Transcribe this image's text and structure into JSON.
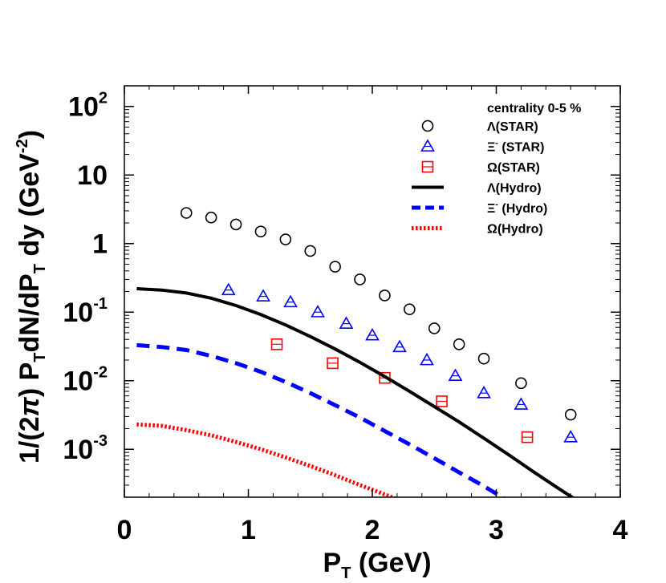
{
  "chart_data": {
    "type": "scatter",
    "title": "",
    "xlabel": "P",
    "xlabel_sub": "T",
    "xlabel_unit": " (GeV)",
    "ylabel_parts": {
      "p1": "1/(2",
      "pi": "π",
      "p2": ") P",
      "sub1": "T",
      "p3": "dN/dP",
      "sub2": "T",
      "p4": " dy (GeV",
      "sup": "-2",
      "p5": ")"
    },
    "xlim": [
      0,
      4
    ],
    "ylim": [
      0.0002,
      200
    ],
    "yscale": "log",
    "x_ticks": [
      {
        "value": 0,
        "label": "0"
      },
      {
        "value": 1,
        "label": "1"
      },
      {
        "value": 2,
        "label": "2"
      },
      {
        "value": 3,
        "label": "3"
      },
      {
        "value": 4,
        "label": "4"
      }
    ],
    "y_ticks": [
      {
        "value": 0.001,
        "base": "10",
        "exp": "-3"
      },
      {
        "value": 0.01,
        "base": "10",
        "exp": "-2"
      },
      {
        "value": 0.1,
        "base": "10",
        "exp": "-1"
      },
      {
        "value": 1,
        "base": "1",
        "exp": ""
      },
      {
        "value": 10,
        "base": "10",
        "exp": ""
      },
      {
        "value": 100,
        "base": "10",
        "exp": "2"
      }
    ],
    "legend_title": "centrality 0-5 %",
    "legend_position": "top-right",
    "series": [
      {
        "name": "Λ(STAR)",
        "kind": "points",
        "marker": "circle",
        "color": "#000000",
        "x": [
          0.5,
          0.7,
          0.9,
          1.1,
          1.3,
          1.5,
          1.7,
          1.9,
          2.1,
          2.3,
          2.5,
          2.7,
          2.9,
          3.2,
          3.6
        ],
        "y": [
          2.8,
          2.4,
          1.9,
          1.5,
          1.15,
          0.78,
          0.46,
          0.3,
          0.175,
          0.11,
          0.058,
          0.034,
          0.021,
          0.0092,
          0.0032
        ]
      },
      {
        "name": "Ξ",
        "name_sup": "-",
        "name_rest": " (STAR)",
        "kind": "points",
        "marker": "triangle",
        "color": "#0000ff",
        "x": [
          0.84,
          1.12,
          1.34,
          1.56,
          1.79,
          2.0,
          2.22,
          2.44,
          2.67,
          2.9,
          3.2,
          3.6
        ],
        "y": [
          0.21,
          0.17,
          0.14,
          0.1,
          0.068,
          0.046,
          0.031,
          0.02,
          0.0118,
          0.0066,
          0.0045,
          0.0015
        ]
      },
      {
        "name": "Ω(STAR)",
        "kind": "points",
        "marker": "square",
        "color": "#ff0000",
        "x": [
          1.23,
          1.68,
          2.1,
          2.56,
          3.25
        ],
        "y": [
          0.034,
          0.018,
          0.011,
          0.005,
          0.0015
        ]
      },
      {
        "name": "Λ(Hydro)",
        "kind": "line",
        "style": "solid",
        "color": "#000000",
        "x": [
          0.1,
          0.3,
          0.5,
          0.7,
          0.9,
          1.1,
          1.3,
          1.5,
          1.7,
          1.9,
          2.1,
          2.3,
          2.5,
          2.7,
          2.9,
          3.1,
          3.3,
          3.5,
          3.65
        ],
        "y": [
          0.22,
          0.21,
          0.19,
          0.16,
          0.125,
          0.092,
          0.065,
          0.044,
          0.029,
          0.0185,
          0.0115,
          0.007,
          0.0042,
          0.0025,
          0.00145,
          0.00083,
          0.00047,
          0.00027,
          0.00018
        ]
      },
      {
        "name": "Ξ",
        "name_sup": "-",
        "name_rest": " (Hydro)",
        "kind": "line",
        "style": "dashed",
        "color": "#0000ff",
        "x": [
          0.1,
          0.3,
          0.5,
          0.7,
          0.9,
          1.1,
          1.3,
          1.5,
          1.7,
          1.9,
          2.1,
          2.3,
          2.5,
          2.7,
          2.9,
          3.1,
          3.25
        ],
        "y": [
          0.033,
          0.031,
          0.028,
          0.023,
          0.018,
          0.0135,
          0.0096,
          0.0066,
          0.0044,
          0.0029,
          0.00185,
          0.00118,
          0.00074,
          0.00046,
          0.00029,
          0.000175,
          0.00012
        ]
      },
      {
        "name": "Ω(Hydro)",
        "kind": "line",
        "style": "dotted",
        "color": "#ff0000",
        "x": [
          0.1,
          0.3,
          0.5,
          0.7,
          0.9,
          1.1,
          1.3,
          1.5,
          1.7,
          1.9,
          2.1,
          2.3,
          2.5
        ],
        "y": [
          0.0023,
          0.0022,
          0.0019,
          0.0016,
          0.00128,
          0.001,
          0.00076,
          0.00057,
          0.00042,
          0.0003,
          0.00022,
          0.00016,
          0.00011
        ]
      }
    ]
  }
}
